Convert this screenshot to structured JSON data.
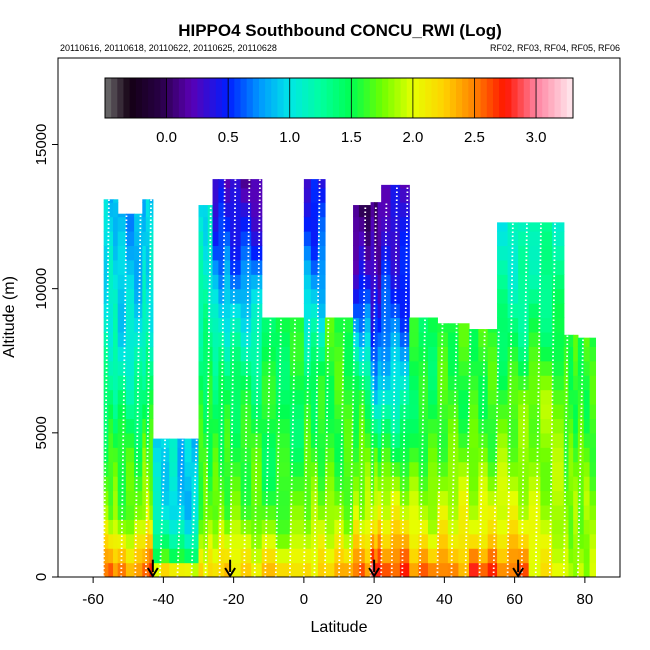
{
  "chart_data": {
    "type": "heatmap",
    "title": "HIPPO4 Southbound CONCU_RWI (Log)",
    "subtitle_left": "20110616, 20110618, 20110622, 20110625, 20110628",
    "subtitle_right": "RF02, RF03, RF04, RF05, RF06",
    "xlabel": "Latitude",
    "ylabel": "Altitude (m)",
    "xlim": [
      -70,
      90
    ],
    "ylim": [
      0,
      18000
    ],
    "x_ticks": [
      -60,
      -40,
      -20,
      0,
      20,
      40,
      60,
      80
    ],
    "x_tick_labels": [
      "-60",
      "-40",
      "-20",
      "0",
      "20",
      "40",
      "60",
      "80"
    ],
    "y_ticks": [
      0,
      5000,
      10000,
      15000
    ],
    "y_tick_labels": [
      "0",
      "5000",
      "10000",
      "15000"
    ],
    "colorbar": {
      "range": [
        -0.5,
        3.3
      ],
      "ticks": [
        0.0,
        0.5,
        1.0,
        1.5,
        2.0,
        2.5,
        3.0
      ],
      "tick_labels": [
        "0.0",
        "0.5",
        "1.0",
        "1.5",
        "2.0",
        "2.5",
        "3.0"
      ]
    },
    "columns": [
      {
        "lat_from": -57,
        "lat_to": -53,
        "top": 13100,
        "values": [
          2.6,
          1.8,
          1.6,
          1.3,
          1.1,
          1.0,
          0.9
        ]
      },
      {
        "lat_from": -53,
        "lat_to": -46,
        "top": 12600,
        "values": [
          2.5,
          1.7,
          1.6,
          1.3,
          1.0,
          0.9,
          0.8
        ]
      },
      {
        "lat_from": -46,
        "lat_to": -43,
        "top": 13100,
        "values": [
          2.7,
          1.9,
          1.7,
          1.4,
          1.1,
          1.0,
          0.9
        ]
      },
      {
        "lat_from": -43,
        "lat_to": -36,
        "top": 4800,
        "values": [
          2.4,
          1.5,
          1.2,
          1.0,
          1.0,
          1.0,
          1.0
        ]
      },
      {
        "lat_from": -36,
        "lat_to": -30,
        "top": 4800,
        "values": [
          2.3,
          1.4,
          1.1,
          0.9,
          0.9,
          0.9,
          0.9
        ]
      },
      {
        "lat_from": -30,
        "lat_to": -26,
        "top": 12900,
        "values": [
          2.2,
          1.7,
          1.6,
          1.5,
          1.3,
          1.1,
          1.0
        ]
      },
      {
        "lat_from": -26,
        "lat_to": -21,
        "top": 13800,
        "values": [
          2.3,
          1.7,
          1.6,
          1.4,
          1.0,
          0.6,
          0.3
        ]
      },
      {
        "lat_from": -21,
        "lat_to": -12,
        "top": 13800,
        "values": [
          2.2,
          1.7,
          1.6,
          1.4,
          1.0,
          0.5,
          0.2
        ]
      },
      {
        "lat_from": -12,
        "lat_to": 0,
        "top": 9000,
        "values": [
          2.3,
          1.8,
          1.6,
          1.5,
          1.5,
          1.5,
          1.5
        ]
      },
      {
        "lat_from": 0,
        "lat_to": 6,
        "top": 13800,
        "values": [
          2.2,
          1.8,
          1.6,
          1.5,
          1.0,
          0.6,
          0.4
        ]
      },
      {
        "lat_from": 6,
        "lat_to": 14,
        "top": 9000,
        "values": [
          2.4,
          1.9,
          1.7,
          1.6,
          1.6,
          1.6,
          1.6
        ]
      },
      {
        "lat_from": 14,
        "lat_to": 19,
        "top": 12900,
        "values": [
          2.6,
          1.9,
          1.7,
          1.5,
          0.8,
          0.3,
          0.0
        ]
      },
      {
        "lat_from": 19,
        "lat_to": 22,
        "top": 13000,
        "values": [
          2.9,
          2.0,
          1.6,
          0.9,
          0.5,
          0.2,
          0.1
        ]
      },
      {
        "lat_from": 22,
        "lat_to": 30,
        "top": 13600,
        "values": [
          2.7,
          2.0,
          1.5,
          1.0,
          0.6,
          0.4,
          0.3
        ]
      },
      {
        "lat_from": 30,
        "lat_to": 38,
        "top": 9000,
        "values": [
          2.6,
          2.0,
          1.8,
          1.6,
          1.5,
          1.5,
          1.5
        ]
      },
      {
        "lat_from": 38,
        "lat_to": 47,
        "top": 8800,
        "values": [
          2.5,
          2.1,
          1.9,
          1.7,
          1.6,
          1.6,
          1.6
        ]
      },
      {
        "lat_from": 47,
        "lat_to": 55,
        "top": 8600,
        "values": [
          2.8,
          2.1,
          1.9,
          1.7,
          1.6,
          1.6,
          1.6
        ]
      },
      {
        "lat_from": 55,
        "lat_to": 64,
        "top": 12300,
        "values": [
          2.6,
          2.0,
          1.8,
          1.7,
          1.4,
          1.2,
          1.1
        ]
      },
      {
        "lat_from": 64,
        "lat_to": 74,
        "top": 12300,
        "values": [
          2.1,
          1.9,
          1.8,
          1.8,
          1.5,
          1.3,
          1.2
        ]
      },
      {
        "lat_from": 74,
        "lat_to": 78,
        "top": 8400,
        "values": [
          1.9,
          1.8,
          1.8,
          1.7,
          1.6,
          1.6,
          1.6
        ]
      },
      {
        "lat_from": 78,
        "lat_to": 83,
        "top": 8300,
        "values": [
          1.9,
          1.8,
          1.8,
          1.7,
          1.6,
          1.6,
          1.6
        ]
      }
    ],
    "profile_latitudes": [
      -57,
      -52,
      -48,
      -45,
      -41,
      -36,
      -32,
      -28,
      -24,
      -21,
      -17,
      -14,
      -11,
      -8,
      -4,
      0,
      3,
      6,
      10,
      13,
      16,
      19,
      22,
      25,
      28,
      33,
      38,
      42,
      46,
      50,
      54,
      58,
      62,
      66,
      70,
      74,
      78
    ],
    "arrow_latitudes": [
      -43,
      -21,
      20,
      61
    ]
  }
}
